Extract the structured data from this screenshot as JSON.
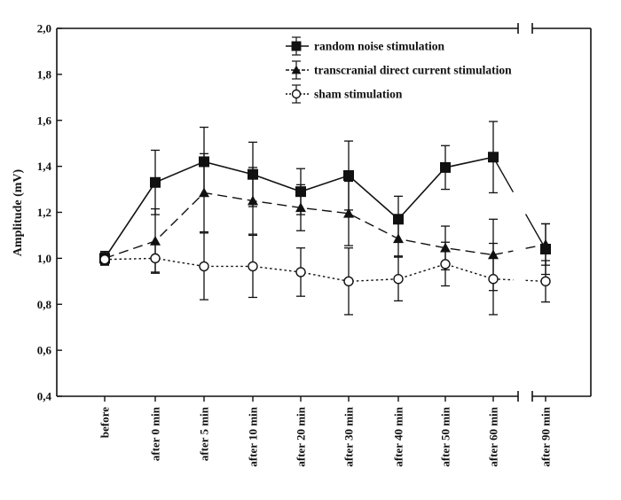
{
  "chart_data": {
    "type": "line",
    "title": "",
    "xlabel": "",
    "ylabel": "Amplitude (mV)",
    "ylim": [
      0.4,
      2.0
    ],
    "yticks": [
      "0,4",
      "0,6",
      "0,8",
      "1,0",
      "1,2",
      "1,4",
      "1,6",
      "1,8",
      "2,0"
    ],
    "categories": [
      "before",
      "after 0 min",
      "after 5 min",
      "after 10 min",
      "after 20 min",
      "after 30 min",
      "after 40 min",
      "after 50 min",
      "after 60 min",
      "after 90 min"
    ],
    "axis_break_after": "after 60 min",
    "grid": false,
    "legend_position": "top-right",
    "series": [
      {
        "name": "random noise stimulation",
        "marker": "filled-square",
        "line_style": "solid",
        "values": [
          1.0,
          1.33,
          1.42,
          1.365,
          1.29,
          1.36,
          1.17,
          1.395,
          1.44,
          1.04
        ],
        "errors": [
          0.03,
          0.14,
          0.15,
          0.14,
          0.1,
          0.15,
          0.1,
          0.095,
          0.155,
          0.11
        ]
      },
      {
        "name": "transcranial direct current stimulation",
        "marker": "filled-triangle",
        "line_style": "dashed",
        "values": [
          1.0,
          1.075,
          1.285,
          1.25,
          1.22,
          1.195,
          1.085,
          1.045,
          1.015,
          1.06
        ],
        "errors": [
          0.025,
          0.14,
          0.17,
          0.145,
          0.1,
          0.14,
          0.075,
          0.095,
          0.155,
          0.09
        ]
      },
      {
        "name": "sham stimulation",
        "marker": "open-circle",
        "line_style": "dotted",
        "values": [
          0.995,
          1.0,
          0.965,
          0.965,
          0.94,
          0.9,
          0.91,
          0.975,
          0.91,
          0.9
        ],
        "errors": [
          0.02,
          0.06,
          0.145,
          0.135,
          0.105,
          0.145,
          0.095,
          0.095,
          0.155,
          0.09
        ]
      }
    ]
  }
}
